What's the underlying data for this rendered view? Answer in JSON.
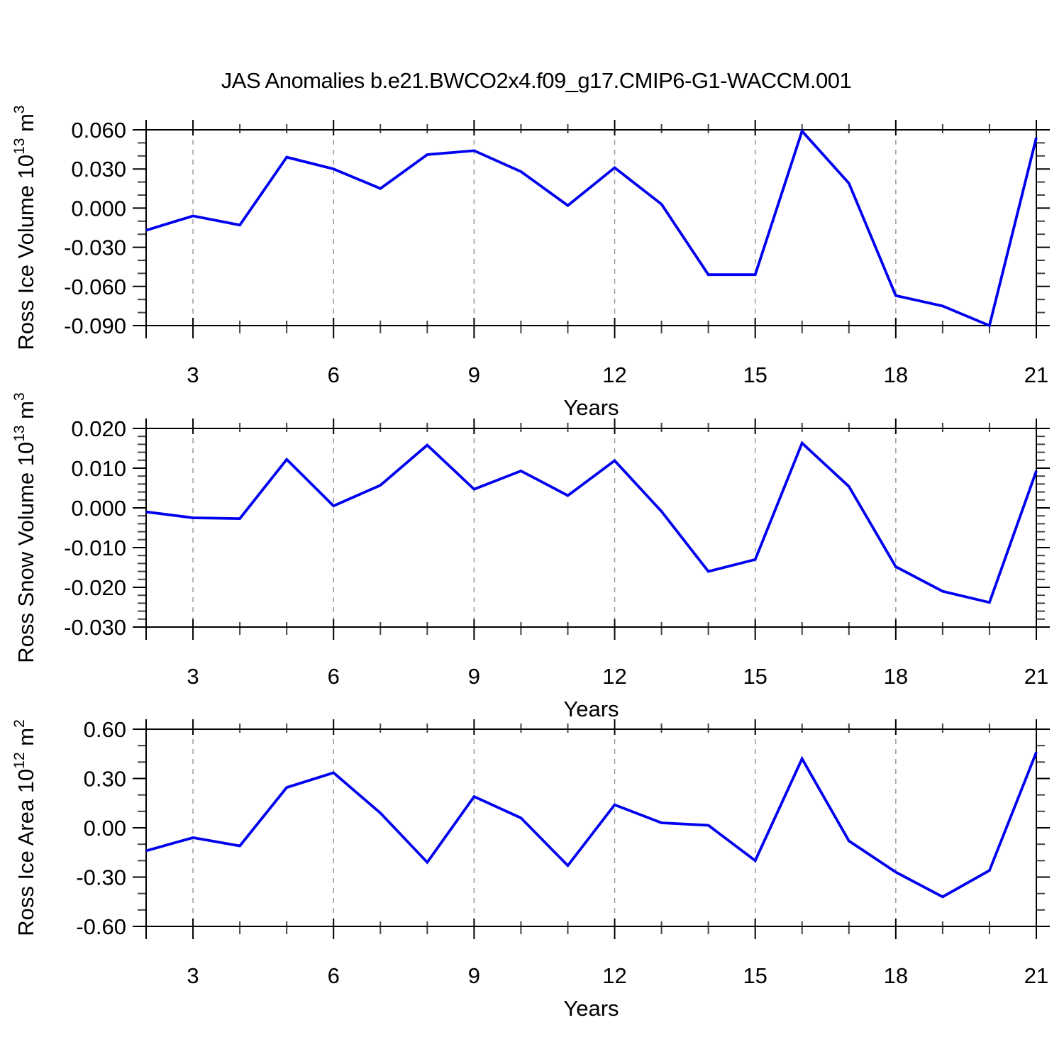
{
  "title": "JAS Anomalies b.e21.BWCO2x4.f09_g17.CMIP6-G1-WACCM.001",
  "colors": {
    "line": "#0000f0",
    "grid": "#999999",
    "axis": "#000000",
    "minor_tick": "#444444",
    "text": "#000000",
    "background": "#ffffff"
  },
  "x_axis": {
    "label": "Years",
    "range": [
      2,
      21
    ],
    "major_ticks": [
      {
        "v": 3,
        "label": "3"
      },
      {
        "v": 6,
        "label": "6"
      },
      {
        "v": 9,
        "label": "9"
      },
      {
        "v": 12,
        "label": "12"
      },
      {
        "v": 15,
        "label": "15"
      },
      {
        "v": 18,
        "label": "18"
      },
      {
        "v": 21,
        "label": "21"
      }
    ],
    "minor_step": 1,
    "grid_years": [
      3,
      6,
      9,
      12,
      15,
      18
    ]
  },
  "chart_data": [
    {
      "type": "line",
      "name": "ross-ice-volume",
      "ylabel": {
        "text": "Ross Ice Volume 10",
        "exp": "13",
        "unit": "m",
        "unit_exp": "3"
      },
      "ylim": [
        -0.09,
        0.06
      ],
      "ytick_major": [
        {
          "v": 0.06,
          "label": "0.060"
        },
        {
          "v": 0.03,
          "label": "0.030"
        },
        {
          "v": 0.0,
          "label": "0.000"
        },
        {
          "v": -0.03,
          "label": "-0.030"
        },
        {
          "v": -0.06,
          "label": "-0.060"
        },
        {
          "v": -0.09,
          "label": "-0.090"
        }
      ],
      "ytick_minor_step": 0.01,
      "x": [
        2,
        3,
        4,
        5,
        6,
        7,
        8,
        9,
        10,
        11,
        12,
        13,
        14,
        15,
        16,
        17,
        18,
        19,
        20,
        21
      ],
      "values": [
        -0.017,
        -0.006,
        -0.013,
        0.039,
        0.03,
        0.015,
        0.041,
        0.044,
        0.028,
        0.002,
        0.031,
        0.003,
        -0.051,
        -0.051,
        0.059,
        0.019,
        -0.067,
        -0.075,
        -0.09,
        0.054
      ]
    },
    {
      "type": "line",
      "name": "ross-snow-volume",
      "ylabel": {
        "text": "Ross Snow Volume 10",
        "exp": "13",
        "unit": "m",
        "unit_exp": "3"
      },
      "ylim": [
        -0.03,
        0.02
      ],
      "ytick_major": [
        {
          "v": 0.02,
          "label": "0.020"
        },
        {
          "v": 0.01,
          "label": "0.010"
        },
        {
          "v": 0.0,
          "label": "0.000"
        },
        {
          "v": -0.01,
          "label": "-0.010"
        },
        {
          "v": -0.02,
          "label": "-0.020"
        },
        {
          "v": -0.03,
          "label": "-0.030"
        }
      ],
      "ytick_minor_step": 0.002,
      "x": [
        2,
        3,
        4,
        5,
        6,
        7,
        8,
        9,
        10,
        11,
        12,
        13,
        14,
        15,
        16,
        17,
        18,
        19,
        20,
        21
      ],
      "values": [
        -0.001,
        -0.0025,
        -0.0027,
        0.0122,
        0.0005,
        0.0057,
        0.0158,
        0.0047,
        0.0093,
        0.0031,
        0.0119,
        -0.0009,
        -0.016,
        -0.013,
        0.0163,
        0.0054,
        -0.0148,
        -0.021,
        -0.0238,
        0.0093
      ]
    },
    {
      "type": "line",
      "name": "ross-ice-area",
      "ylabel": {
        "text": "Ross Ice Area 10",
        "exp": "12",
        "unit": "m",
        "unit_exp": "2"
      },
      "ylim": [
        -0.6,
        0.6
      ],
      "ytick_major": [
        {
          "v": 0.6,
          "label": "0.60"
        },
        {
          "v": 0.3,
          "label": "0.30"
        },
        {
          "v": 0.0,
          "label": "0.00"
        },
        {
          "v": -0.3,
          "label": "-0.30"
        },
        {
          "v": -0.6,
          "label": "-0.60"
        }
      ],
      "ytick_minor_step": 0.1,
      "x": [
        2,
        3,
        4,
        5,
        6,
        7,
        8,
        9,
        10,
        11,
        12,
        13,
        14,
        15,
        16,
        17,
        18,
        19,
        20,
        21
      ],
      "values": [
        -0.14,
        -0.06,
        -0.11,
        0.245,
        0.335,
        0.09,
        -0.21,
        0.19,
        0.06,
        -0.23,
        0.14,
        0.03,
        0.015,
        -0.2,
        0.42,
        -0.08,
        -0.27,
        -0.42,
        -0.26,
        0.46
      ]
    }
  ]
}
